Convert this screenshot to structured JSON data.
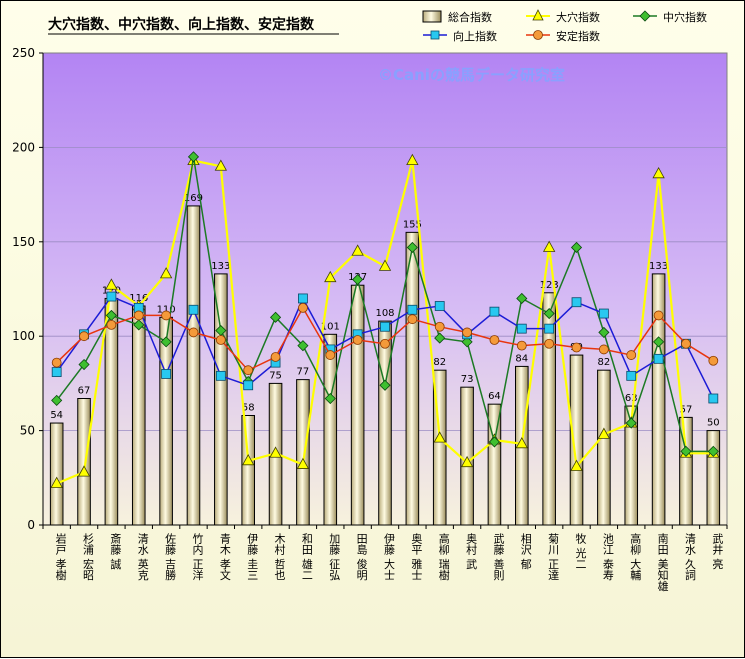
{
  "chart_data": {
    "type": "bar+line",
    "title": "大穴指数、中穴指数、向上指数、安定指数",
    "watermark": "©Caniの競馬データ研究室",
    "ylim": [
      0,
      250
    ],
    "yticks": [
      0,
      50,
      100,
      150,
      200,
      250
    ],
    "grid": true,
    "legend_position": "top-right",
    "categories": [
      "岩戸 孝樹",
      "杉浦 宏昭",
      "斎藤 誠",
      "清水 英克",
      "佐藤 吉勝",
      "竹内 正洋",
      "青木 孝文",
      "伊藤 圭三",
      "木村 哲也",
      "和田 雄二",
      "加藤 征弘",
      "田島 俊明",
      "伊藤 大士",
      "奥平 雅士",
      "高柳 瑞樹",
      "奥村 武",
      "武藤 善則",
      "相沢 郁",
      "菊川 正達",
      "牧 光二",
      "池江 泰寿",
      "高柳 大輔",
      "南田 美知雄",
      "清水 久詞",
      "武井 亮"
    ],
    "series": [
      {
        "name": "総合指数",
        "kind": "bar",
        "color": "#efe9c6",
        "values": [
          54,
          67,
          120,
          116,
          110,
          169,
          133,
          58,
          75,
          77,
          101,
          127,
          108,
          155,
          82,
          73,
          64,
          84,
          123,
          90,
          82,
          63,
          133,
          57,
          50
        ]
      },
      {
        "name": "大穴指数",
        "kind": "line",
        "color": "#ffff00",
        "marker": "triangle",
        "values": [
          22,
          28,
          127,
          116,
          133,
          193,
          190,
          34,
          38,
          32,
          131,
          145,
          137,
          193,
          46,
          33,
          45,
          43,
          147,
          31,
          48,
          54,
          186,
          38,
          38
        ]
      },
      {
        "name": "中穴指数",
        "kind": "line",
        "color": "#1c7a24",
        "marker": "diamond",
        "values": [
          66,
          85,
          111,
          106,
          97,
          195,
          103,
          76,
          110,
          95,
          67,
          130,
          74,
          147,
          99,
          97,
          44,
          120,
          112,
          147,
          102,
          54,
          97,
          39,
          39
        ]
      },
      {
        "name": "向上指数",
        "kind": "line",
        "color": "#1c1cd6",
        "marker": "square",
        "values": [
          81,
          101,
          121,
          115,
          80,
          114,
          79,
          74,
          86,
          120,
          93,
          101,
          105,
          114,
          116,
          101,
          113,
          104,
          104,
          118,
          112,
          79,
          88,
          96,
          67
        ]
      },
      {
        "name": "安定指数",
        "kind": "line",
        "color": "#e8350e",
        "marker": "circle",
        "values": [
          86,
          100,
          106,
          111,
          111,
          102,
          98,
          82,
          89,
          115,
          90,
          98,
          96,
          109,
          105,
          102,
          98,
          95,
          96,
          94,
          93,
          90,
          111,
          96,
          87
        ]
      }
    ]
  },
  "legend": {
    "total_label": "総合指数",
    "oana_label": "大穴指数",
    "nakaana_label": "中穴指数",
    "kojo_label": "向上指数",
    "antei_label": "安定指数"
  }
}
